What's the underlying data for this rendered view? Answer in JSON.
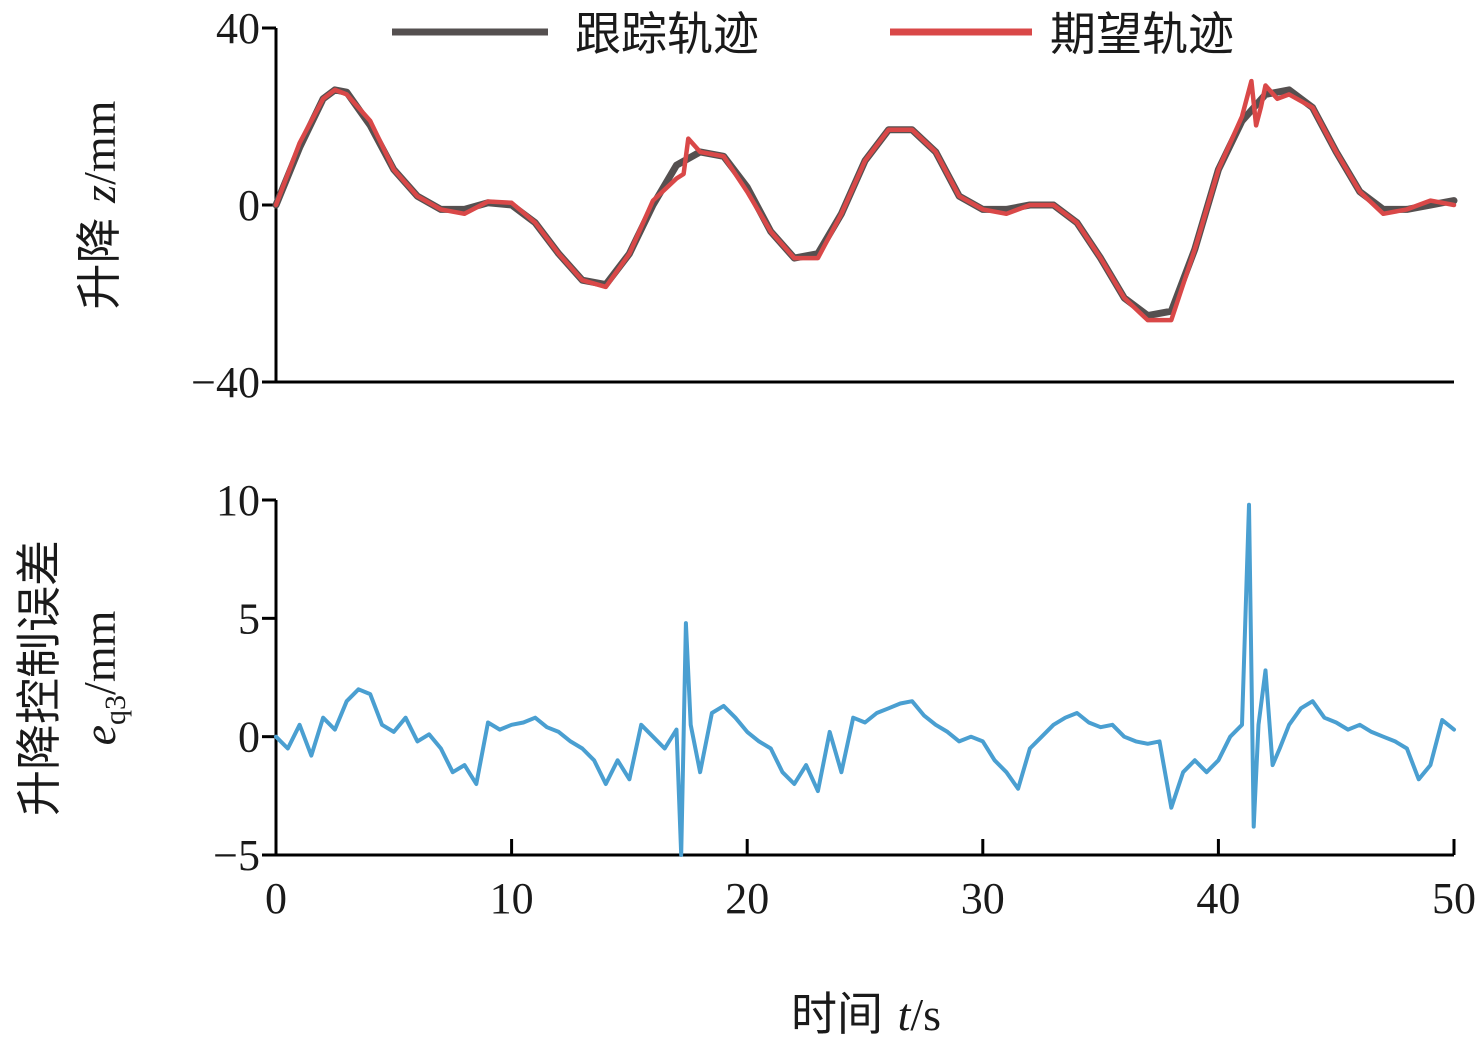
{
  "chart_data": [
    {
      "type": "line",
      "ylabel_text": "升降 ",
      "ylabel_var": "z",
      "ylabel_unit": "/mm",
      "ylim": [
        -40,
        40
      ],
      "yticks": [
        "40",
        "0",
        "−40"
      ],
      "ytick_values": [
        40,
        0,
        -40
      ],
      "xlim": [
        0,
        50
      ],
      "legend_position": "top",
      "series": [
        {
          "name": "跟踪轨迹",
          "color": "#555050",
          "x": [
            0,
            1,
            2,
            2.5,
            3,
            4,
            5,
            6,
            7,
            8,
            9,
            10,
            11,
            12,
            13,
            14,
            15,
            16,
            17,
            18,
            19,
            20,
            21,
            22,
            23,
            24,
            25,
            26,
            27,
            28,
            29,
            30,
            31,
            32,
            33,
            34,
            35,
            36,
            37,
            38,
            39,
            40,
            41,
            42,
            43,
            44,
            45,
            46,
            47,
            48,
            49,
            50
          ],
          "y": [
            0,
            13,
            24,
            26,
            25.5,
            18,
            8,
            2,
            -1,
            -1,
            0.5,
            0,
            -4,
            -11,
            -17,
            -18,
            -11,
            0,
            9,
            12,
            11,
            4,
            -6,
            -12,
            -11,
            -2,
            10,
            17,
            17,
            12,
            2,
            -1,
            -1,
            0,
            0,
            -4,
            -12,
            -21,
            -25,
            -24,
            -10,
            8,
            19,
            25,
            26,
            22,
            12,
            3,
            -1,
            -1,
            0,
            1
          ]
        },
        {
          "name": "期望轨迹",
          "color": "#d94848",
          "x": [
            0,
            1,
            2,
            2.5,
            3,
            4,
            5,
            6,
            7,
            8,
            9,
            10,
            11,
            12,
            13,
            14,
            15,
            16,
            17,
            17.3,
            17.5,
            18,
            19,
            20,
            21,
            22,
            23,
            24,
            25,
            26,
            27,
            28,
            29,
            30,
            31,
            32,
            33,
            34,
            35,
            36,
            37,
            38,
            39,
            40,
            41,
            41.4,
            41.6,
            41.8,
            42,
            42.5,
            43,
            44,
            45,
            46,
            47,
            48,
            49,
            50
          ],
          "y": [
            0,
            14,
            24,
            26,
            25,
            19,
            8,
            2,
            -1,
            -2,
            0.8,
            0.5,
            -4,
            -11,
            -17,
            -18.5,
            -11,
            1,
            6,
            7,
            15,
            12,
            11,
            3,
            -6,
            -12,
            -12,
            -2,
            10,
            17,
            17,
            12,
            2,
            -1,
            -2,
            0,
            0,
            -4,
            -12,
            -21,
            -26,
            -26,
            -10,
            8,
            20,
            28,
            18,
            22,
            27,
            24,
            25,
            22,
            12,
            3,
            -2,
            -1,
            1,
            0
          ]
        }
      ]
    },
    {
      "type": "line",
      "ylabel_line1": "升降控制误差",
      "ylabel_var": "e",
      "ylabel_sub": "q3",
      "ylabel_unit": "/mm",
      "ylim": [
        -5,
        10
      ],
      "yticks": [
        "10",
        "5",
        "0",
        "−5"
      ],
      "ytick_values": [
        10,
        5,
        0,
        -5
      ],
      "xlim": [
        0,
        50
      ],
      "xticks": [
        "0",
        "10",
        "20",
        "30",
        "40",
        "50"
      ],
      "xtick_values": [
        0,
        10,
        20,
        30,
        40,
        50
      ],
      "xlabel_text": "时间 ",
      "xlabel_var": "t",
      "xlabel_unit": "/s",
      "series": [
        {
          "color": "#4a9fd1",
          "x": [
            0,
            0.5,
            1,
            1.5,
            2,
            2.5,
            3,
            3.5,
            4,
            4.5,
            5,
            5.5,
            6,
            6.5,
            7,
            7.5,
            8,
            8.5,
            9,
            9.5,
            10,
            10.5,
            11,
            11.5,
            12,
            12.5,
            13,
            13.5,
            14,
            14.5,
            15,
            15.5,
            16,
            16.5,
            17,
            17.2,
            17.4,
            17.6,
            18,
            18.5,
            19,
            19.5,
            20,
            20.5,
            21,
            21.5,
            22,
            22.5,
            23,
            23.5,
            24,
            24.5,
            25,
            25.5,
            26,
            26.5,
            27,
            27.5,
            28,
            28.5,
            29,
            29.5,
            30,
            30.5,
            31,
            31.5,
            32,
            32.5,
            33,
            33.5,
            34,
            34.5,
            35,
            35.5,
            36,
            36.5,
            37,
            37.5,
            38,
            38.5,
            39,
            39.5,
            40,
            40.5,
            41,
            41.3,
            41.5,
            41.7,
            42,
            42.3,
            42.6,
            43,
            43.5,
            44,
            44.5,
            45,
            45.5,
            46,
            46.5,
            47,
            47.5,
            48,
            48.5,
            49,
            49.5,
            50
          ],
          "y": [
            0,
            -0.5,
            0.5,
            -0.8,
            0.8,
            0.3,
            1.5,
            2,
            1.8,
            0.5,
            0.2,
            0.8,
            -0.2,
            0.1,
            -0.5,
            -1.5,
            -1.2,
            -2,
            0.6,
            0.3,
            0.5,
            0.6,
            0.8,
            0.4,
            0.2,
            -0.2,
            -0.5,
            -1,
            -2,
            -1,
            -1.8,
            0.5,
            0,
            -0.5,
            0.3,
            -5,
            4.8,
            0.5,
            -1.5,
            1,
            1.3,
            0.8,
            0.2,
            -0.2,
            -0.5,
            -1.5,
            -2,
            -1.2,
            -2.3,
            0.2,
            -1.5,
            0.8,
            0.6,
            1,
            1.2,
            1.4,
            1.5,
            0.9,
            0.5,
            0.2,
            -0.2,
            0,
            -0.2,
            -1,
            -1.5,
            -2.2,
            -0.5,
            0,
            0.5,
            0.8,
            1,
            0.6,
            0.4,
            0.5,
            0,
            -0.2,
            -0.3,
            -0.2,
            -3,
            -1.5,
            -1,
            -1.5,
            -1,
            0,
            0.5,
            9.8,
            -3.8,
            0.5,
            2.8,
            -1.2,
            -0.5,
            0.5,
            1.2,
            1.5,
            0.8,
            0.6,
            0.3,
            0.5,
            0.2,
            0,
            -0.2,
            -0.5,
            -1.8,
            -1.2,
            0.7,
            0.3
          ]
        }
      ]
    }
  ]
}
